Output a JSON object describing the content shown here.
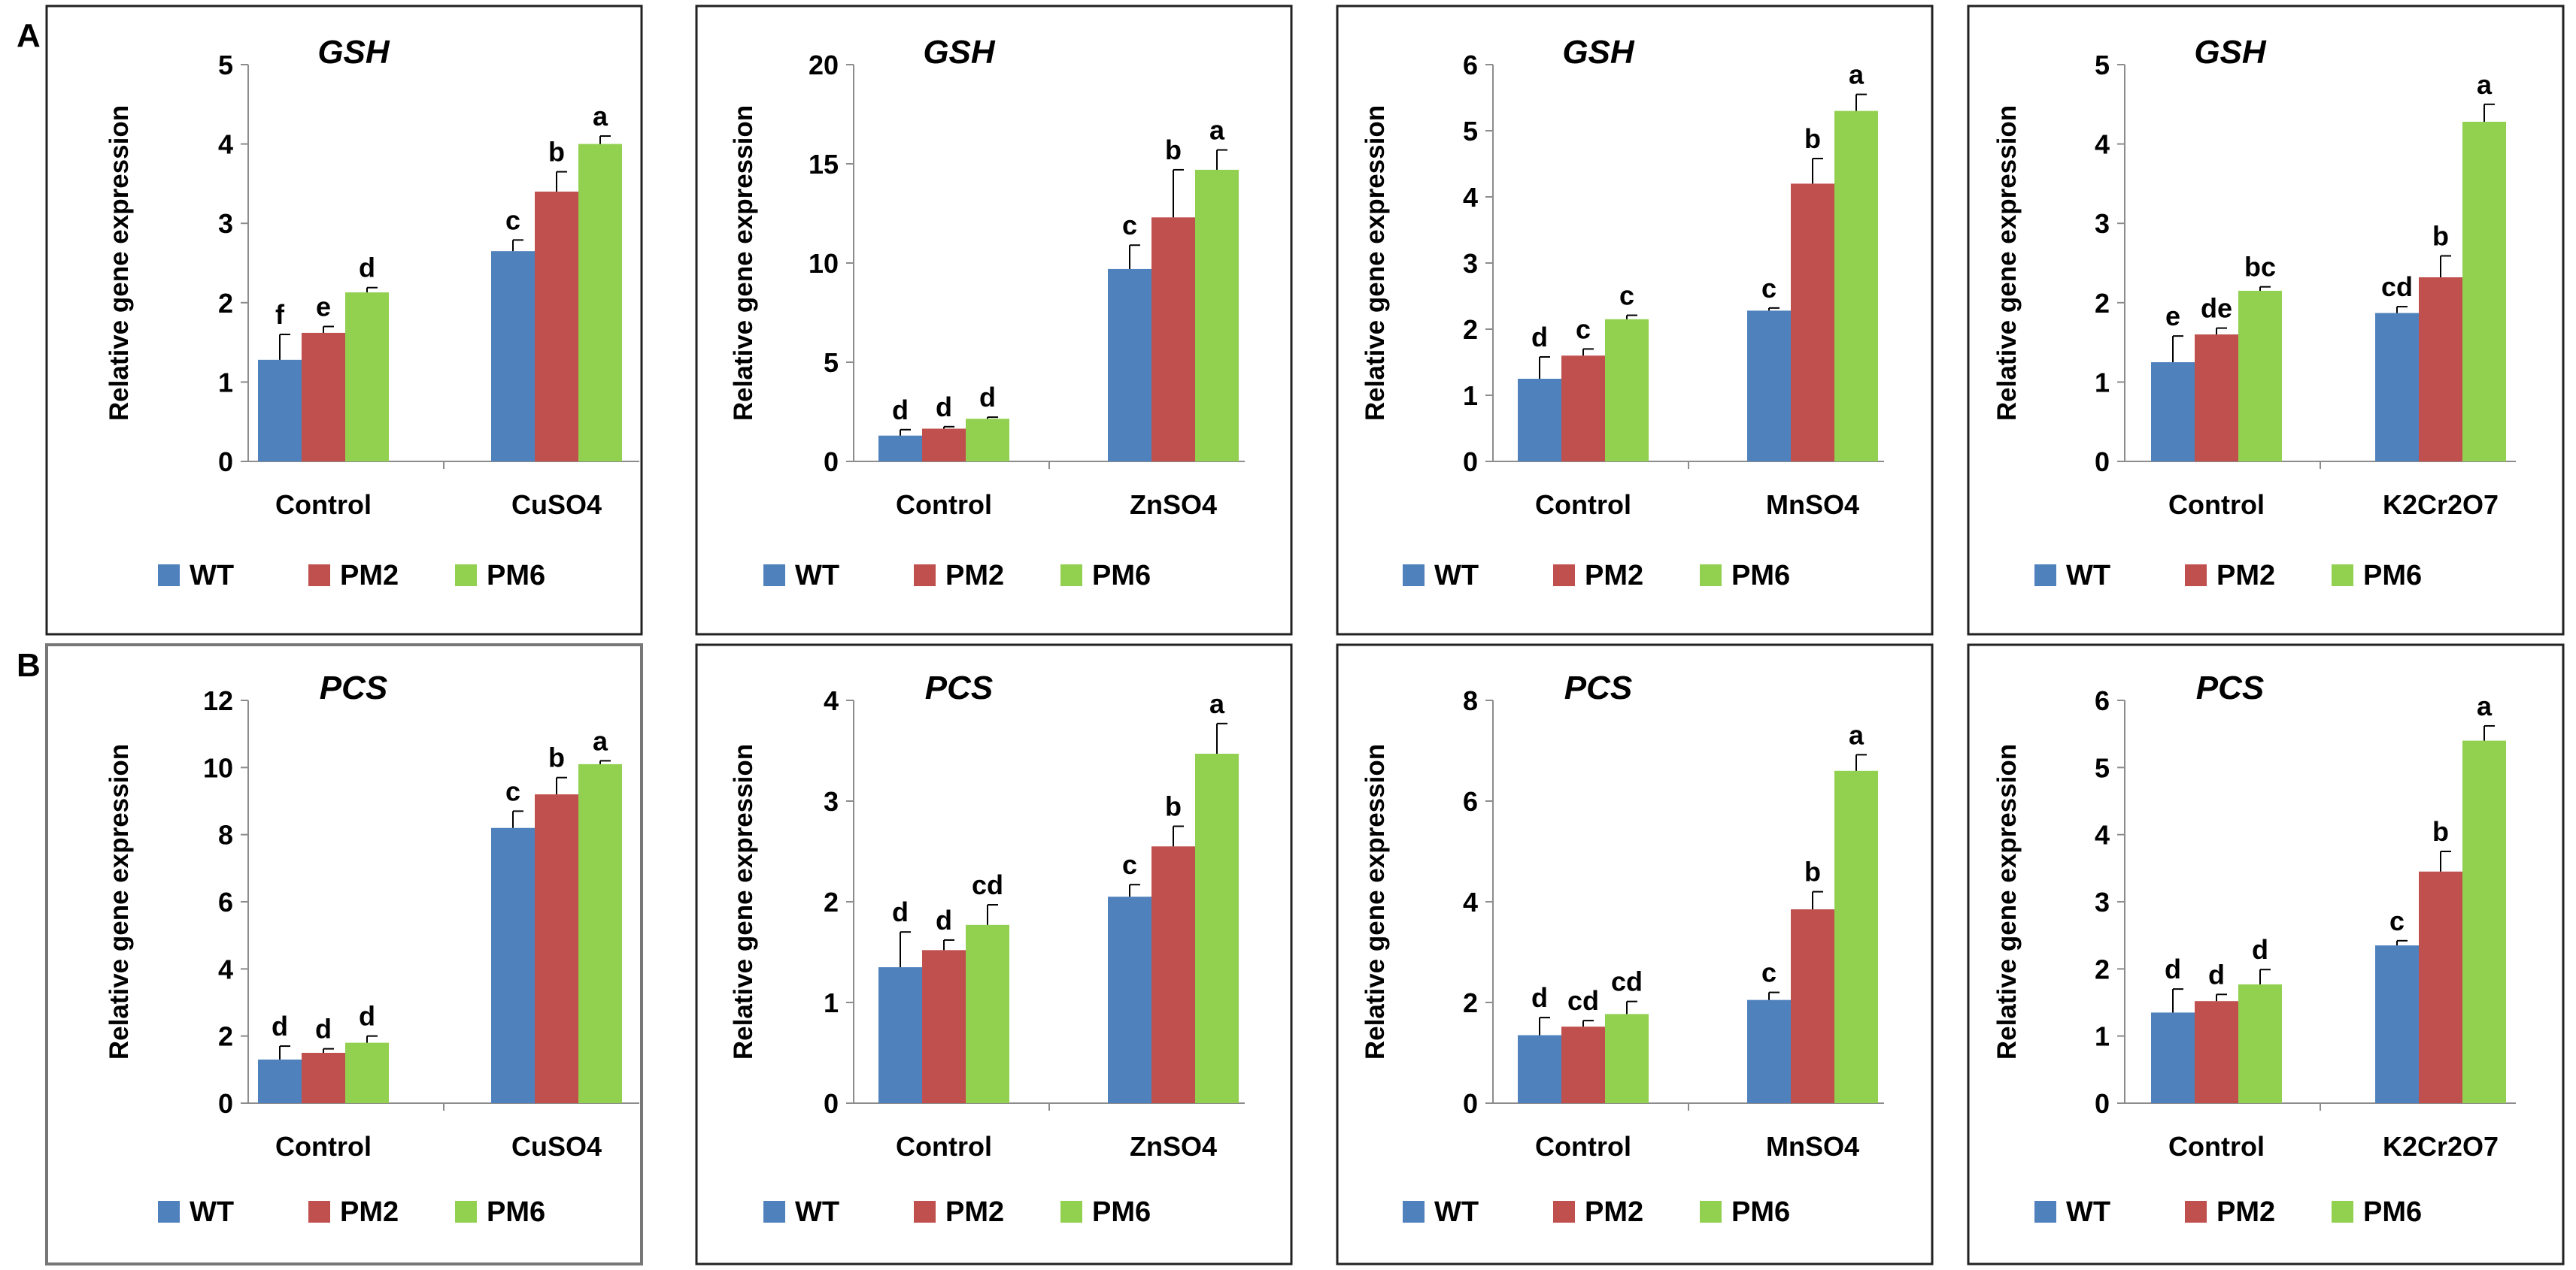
{
  "row_labels": [
    "A",
    "B"
  ],
  "legend": [
    {
      "name": "WT",
      "color": "#4f81bd"
    },
    {
      "name": "PM2",
      "color": "#c0504d"
    },
    {
      "name": "PM6",
      "color": "#92d050"
    }
  ],
  "chart_data": [
    {
      "type": "bar",
      "title": "GSH",
      "ylabel": "Relative gene expression",
      "xlabel": "",
      "categories": [
        "Control",
        "CuSO4"
      ],
      "ylim": [
        0,
        5
      ],
      "yticks": [
        0,
        1,
        2,
        3,
        4,
        5
      ],
      "series": [
        {
          "name": "WT",
          "values": [
            1.28,
            2.65
          ],
          "errors": [
            0.32,
            0.14
          ],
          "labels": [
            "f",
            "c"
          ]
        },
        {
          "name": "PM2",
          "values": [
            1.62,
            3.4
          ],
          "errors": [
            0.08,
            0.25
          ],
          "labels": [
            "e",
            "b"
          ]
        },
        {
          "name": "PM6",
          "values": [
            2.13,
            4.0
          ],
          "errors": [
            0.06,
            0.1
          ],
          "labels": [
            "d",
            "a"
          ]
        }
      ]
    },
    {
      "type": "bar",
      "title": "GSH",
      "ylabel": "Relative gene expression",
      "xlabel": "",
      "categories": [
        "Control",
        "ZnSO4"
      ],
      "ylim": [
        0,
        20
      ],
      "yticks": [
        0,
        5,
        10,
        15,
        20
      ],
      "series": [
        {
          "name": "WT",
          "values": [
            1.3,
            9.7
          ],
          "errors": [
            0.3,
            1.2
          ],
          "labels": [
            "d",
            "c"
          ]
        },
        {
          "name": "PM2",
          "values": [
            1.65,
            12.3
          ],
          "errors": [
            0.1,
            2.4
          ],
          "labels": [
            "d",
            "b"
          ]
        },
        {
          "name": "PM6",
          "values": [
            2.15,
            14.7
          ],
          "errors": [
            0.08,
            1.0
          ],
          "labels": [
            "d",
            "a"
          ]
        }
      ]
    },
    {
      "type": "bar",
      "title": "GSH",
      "ylabel": "Relative gene expression",
      "xlabel": "",
      "categories": [
        "Control",
        "MnSO4"
      ],
      "ylim": [
        0,
        6
      ],
      "yticks": [
        0,
        1,
        2,
        3,
        4,
        5,
        6
      ],
      "series": [
        {
          "name": "WT",
          "values": [
            1.25,
            2.28
          ],
          "errors": [
            0.33,
            0.04
          ],
          "labels": [
            "d",
            "c"
          ]
        },
        {
          "name": "PM2",
          "values": [
            1.6,
            4.2
          ],
          "errors": [
            0.1,
            0.38
          ],
          "labels": [
            "c",
            "b"
          ]
        },
        {
          "name": "PM6",
          "values": [
            2.15,
            5.3
          ],
          "errors": [
            0.06,
            0.25
          ],
          "labels": [
            "c",
            "a"
          ]
        }
      ]
    },
    {
      "type": "bar",
      "title": "GSH",
      "ylabel": "Relative gene expression",
      "xlabel": "",
      "categories": [
        "Control",
        "K2Cr2O7"
      ],
      "ylim": [
        0,
        5
      ],
      "yticks": [
        0,
        1,
        2,
        3,
        4,
        5
      ],
      "series": [
        {
          "name": "WT",
          "values": [
            1.25,
            1.87
          ],
          "errors": [
            0.33,
            0.08
          ],
          "labels": [
            "e",
            "cd"
          ]
        },
        {
          "name": "PM2",
          "values": [
            1.6,
            2.32
          ],
          "errors": [
            0.08,
            0.27
          ],
          "labels": [
            "de",
            "b"
          ]
        },
        {
          "name": "PM6",
          "values": [
            2.15,
            4.28
          ],
          "errors": [
            0.05,
            0.22
          ],
          "labels": [
            "bc",
            "a"
          ]
        }
      ]
    },
    {
      "type": "bar",
      "title": "PCS",
      "ylabel": "Relative gene expression",
      "xlabel": "",
      "categories": [
        "Control",
        "CuSO4"
      ],
      "ylim": [
        0,
        12
      ],
      "yticks": [
        0,
        2,
        4,
        6,
        8,
        10,
        12
      ],
      "series": [
        {
          "name": "WT",
          "values": [
            1.3,
            8.2
          ],
          "errors": [
            0.4,
            0.5
          ],
          "labels": [
            "d",
            "c"
          ]
        },
        {
          "name": "PM2",
          "values": [
            1.5,
            9.2
          ],
          "errors": [
            0.12,
            0.5
          ],
          "labels": [
            "d",
            "b"
          ]
        },
        {
          "name": "PM6",
          "values": [
            1.8,
            10.1
          ],
          "errors": [
            0.2,
            0.1
          ],
          "labels": [
            "d",
            "a"
          ]
        }
      ]
    },
    {
      "type": "bar",
      "title": "PCS",
      "ylabel": "Relative gene expression",
      "xlabel": "",
      "categories": [
        "Control",
        "ZnSO4"
      ],
      "ylim": [
        0,
        4
      ],
      "yticks": [
        0,
        1,
        2,
        3,
        4
      ],
      "series": [
        {
          "name": "WT",
          "values": [
            1.35,
            2.05
          ],
          "errors": [
            0.35,
            0.12
          ],
          "labels": [
            "d",
            "c"
          ]
        },
        {
          "name": "PM2",
          "values": [
            1.52,
            2.55
          ],
          "errors": [
            0.1,
            0.2
          ],
          "labels": [
            "d",
            "b"
          ]
        },
        {
          "name": "PM6",
          "values": [
            1.77,
            3.47
          ],
          "errors": [
            0.2,
            0.3
          ],
          "labels": [
            "cd",
            "a"
          ]
        }
      ]
    },
    {
      "type": "bar",
      "title": "PCS",
      "ylabel": "Relative gene expression",
      "xlabel": "",
      "categories": [
        "Control",
        "MnSO4"
      ],
      "ylim": [
        0,
        8
      ],
      "yticks": [
        0,
        2,
        4,
        6,
        8
      ],
      "series": [
        {
          "name": "WT",
          "values": [
            1.35,
            2.05
          ],
          "errors": [
            0.35,
            0.15
          ],
          "labels": [
            "d",
            "c"
          ]
        },
        {
          "name": "PM2",
          "values": [
            1.52,
            3.85
          ],
          "errors": [
            0.12,
            0.35
          ],
          "labels": [
            "cd",
            "b"
          ]
        },
        {
          "name": "PM6",
          "values": [
            1.77,
            6.6
          ],
          "errors": [
            0.25,
            0.32
          ],
          "labels": [
            "cd",
            "a"
          ]
        }
      ]
    },
    {
      "type": "bar",
      "title": "PCS",
      "ylabel": "Relative gene expression",
      "xlabel": "",
      "categories": [
        "Control",
        "K2Cr2O7"
      ],
      "ylim": [
        0,
        6
      ],
      "yticks": [
        0,
        1,
        2,
        3,
        4,
        5,
        6
      ],
      "series": [
        {
          "name": "WT",
          "values": [
            1.35,
            2.35
          ],
          "errors": [
            0.35,
            0.07
          ],
          "labels": [
            "d",
            "c"
          ]
        },
        {
          "name": "PM2",
          "values": [
            1.52,
            3.45
          ],
          "errors": [
            0.1,
            0.3
          ],
          "labels": [
            "d",
            "b"
          ]
        },
        {
          "name": "PM6",
          "values": [
            1.77,
            5.4
          ],
          "errors": [
            0.22,
            0.22
          ],
          "labels": [
            "d",
            "a"
          ]
        }
      ]
    }
  ]
}
